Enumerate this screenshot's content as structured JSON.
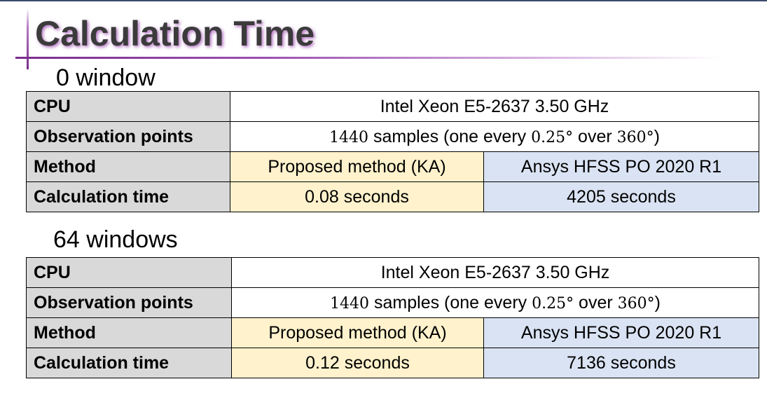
{
  "slide": {
    "title": "Calculation Time"
  },
  "sections": [
    {
      "heading": "0 window",
      "rows": {
        "cpu": {
          "label": "CPU",
          "value": "Intel Xeon E5-2637 3.50 GHz"
        },
        "observation": {
          "label": "Observation points",
          "count": "1440",
          "text_a": " samples (one every ",
          "step": "0.25°",
          "text_b": " over ",
          "range": "360°",
          "text_c": ")"
        },
        "method": {
          "label": "Method",
          "proposed": "Proposed method (KA)",
          "ansys": "Ansys HFSS PO 2020 R1"
        },
        "time": {
          "label": "Calculation time",
          "proposed": "0.08 seconds",
          "ansys": "4205 seconds"
        }
      }
    },
    {
      "heading": "64 windows",
      "rows": {
        "cpu": {
          "label": "CPU",
          "value": "Intel Xeon E5-2637 3.50 GHz"
        },
        "observation": {
          "label": "Observation points",
          "count": "1440",
          "text_a": " samples (one every ",
          "step": "0.25°",
          "text_b": " over ",
          "range": "360°",
          "text_c": ")"
        },
        "method": {
          "label": "Method",
          "proposed": "Proposed method (KA)",
          "ansys": "Ansys HFSS PO 2020 R1"
        },
        "time": {
          "label": "Calculation time",
          "proposed": "0.12 seconds",
          "ansys": "7136 seconds"
        }
      }
    }
  ],
  "colors": {
    "label_bg": "#d9d9d9",
    "proposed_bg": "#fff2cc",
    "ansys_bg": "#dae3f3",
    "accent": "#7a2d8c"
  }
}
